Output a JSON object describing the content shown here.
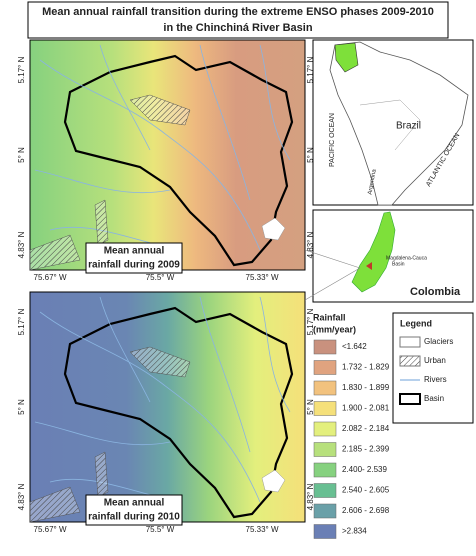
{
  "title": {
    "lines": [
      "Mean annual rainfall transition during the extreme ENSO phases 2009-2010",
      "in the Chinchiná River Basin"
    ]
  },
  "maps": [
    {
      "caption": [
        "Mean annual",
        "rainfall during 2009"
      ]
    },
    {
      "caption": [
        "Mean annual",
        "rainfall during 2010"
      ]
    }
  ],
  "latitude_labels": [
    "5.17° N",
    "5° N",
    "4.83° N"
  ],
  "longitude_labels": [
    "75.67° W",
    "75.5° W",
    "75.33° W"
  ],
  "inset": {
    "labels": {
      "brazil": "Brazil",
      "pacific": "PACIFIC OCEAN",
      "atlantic": "ATLANTIC OCEAN",
      "argentina": "Argentina",
      "colombia": "Colombia",
      "basin": [
        "Magdalena-Cauca",
        "Basin"
      ]
    }
  },
  "rainfall_legend": {
    "title": [
      "Rainfall",
      "(mm/year)"
    ],
    "classes": [
      {
        "label": "<1.642",
        "color": "#c9917e"
      },
      {
        "label": "1.732 - 1.829",
        "color": "#e0a37f"
      },
      {
        "label": "1.830 - 1.899",
        "color": "#f2c27e"
      },
      {
        "label": "1.900 - 2.081",
        "color": "#f5e07a"
      },
      {
        "label": "2.082 - 2.184",
        "color": "#e3ef7d"
      },
      {
        "label": "2.185 - 2.399",
        "color": "#b7e07c"
      },
      {
        "label": "2.400- 2.539",
        "color": "#86d17f"
      },
      {
        "label": "2.540 - 2.605",
        "color": "#68bf92"
      },
      {
        "label": "2.606 - 2.698",
        "color": "#6aa0a8"
      },
      {
        "label": ">2.834",
        "color": "#6a7fb5"
      }
    ]
  },
  "legend": {
    "title": "Legend",
    "items": [
      "Glaciers",
      "Urban",
      "Rivers",
      "Basin"
    ]
  }
}
